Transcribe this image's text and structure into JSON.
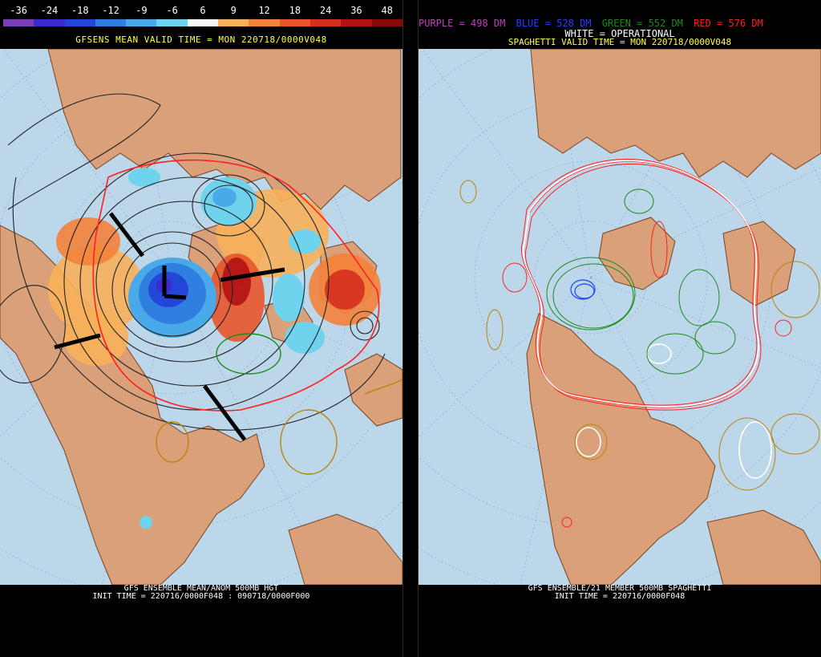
{
  "left_panel": {
    "colorbar": {
      "labels": [
        "-36",
        "-24",
        "-18",
        "-12",
        "-9",
        "-6",
        "6",
        "9",
        "12",
        "18",
        "24",
        "36",
        "48"
      ],
      "colors": [
        "#7d3fb8",
        "#3a2ad0",
        "#2346d8",
        "#2e7fe0",
        "#4aa9e8",
        "#6fd3ee",
        "#f6f6f6",
        "#f7b05a",
        "#f3823a",
        "#e8552b",
        "#d5301f",
        "#b11313",
        "#870909"
      ]
    },
    "subtitle": "GFSENS MEAN VALID TIME = MON 220718/0000V048",
    "caption_line1": "GFS ENSEMBLE MEAN/ANOM 500MB HGT",
    "caption_line2": "INIT TIME = 220716/0000F048 : 090718/0000F000"
  },
  "right_panel": {
    "legend": {
      "purple": "PURPLE = 498 DM",
      "blue": "BLUE = 528 DM",
      "green": "GREEN = 552 DM",
      "red": "RED = 576 DM",
      "white": "WHITE = OPERATIONAL"
    },
    "legend_colors": {
      "purple": "#c040c0",
      "blue": "#2040ff",
      "green": "#1a8c1a",
      "red": "#ff2020",
      "white": "#ffffff"
    },
    "subtitle": "SPAGHETTI VALID TIME = MON 220718/0000V048",
    "caption_line1": "GFS ENSEMBLE/21 MEMBER 500MB SPAGHETTI",
    "caption_line2": "INIT TIME = 220716/0000F048"
  },
  "colors": {
    "ocean": "#bcd6ea",
    "land": "#d9a07a",
    "coast": "#7a4320",
    "subtitle": "#ffff40"
  }
}
